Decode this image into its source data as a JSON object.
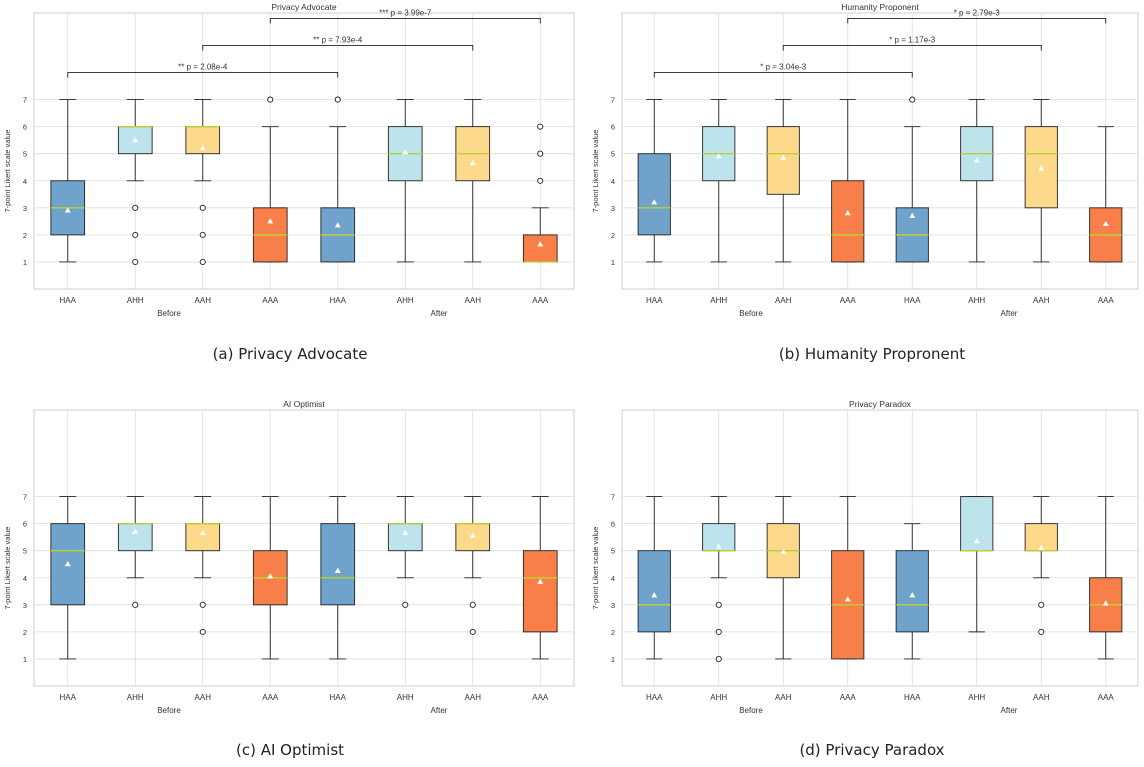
{
  "common": {
    "ylabel": "7-point Likert scale value",
    "ylim": [
      0,
      10.2
    ],
    "yticks": [
      "1",
      "2",
      "3",
      "4",
      "5",
      "6",
      "7"
    ],
    "categories": [
      "HAA",
      "AHH",
      "AAH",
      "AAA",
      "HAA",
      "AHH",
      "AAH",
      "AAA"
    ],
    "group_labels": [
      "Before",
      "After"
    ],
    "colors": {
      "HAA": "#6fa3cc",
      "AHH": "#bde3ec",
      "AAH": "#fdd98c",
      "AAA": "#f97f4a",
      "median": "#bcd030",
      "mean_marker": "#ffffff",
      "grid": "#dcdcdc"
    }
  },
  "panels": [
    {
      "caption": "(a) Privacy Advocate",
      "chart_data": {
        "type": "box",
        "title": "Privacy Advocate",
        "ylabel": "7-point Likert scale value",
        "boxes": [
          {
            "category": "HAA",
            "group": "Before",
            "whisker_low": 1,
            "q1": 2,
            "median": 3,
            "q3": 4,
            "whisker_high": 7,
            "mean": 2.9,
            "outliers": []
          },
          {
            "category": "AHH",
            "group": "Before",
            "whisker_low": 4,
            "q1": 5,
            "median": 6,
            "q3": 6,
            "whisker_high": 7,
            "mean": 5.5,
            "outliers": [
              3,
              2,
              1
            ]
          },
          {
            "category": "AAH",
            "group": "Before",
            "whisker_low": 4,
            "q1": 5,
            "median": 6,
            "q3": 6,
            "whisker_high": 7,
            "mean": 5.2,
            "outliers": [
              3,
              2,
              1
            ]
          },
          {
            "category": "AAA",
            "group": "Before",
            "whisker_low": 1,
            "q1": 1,
            "median": 2,
            "q3": 3,
            "whisker_high": 6,
            "mean": 2.5,
            "outliers": [
              7
            ]
          },
          {
            "category": "HAA",
            "group": "After",
            "whisker_low": 1,
            "q1": 1,
            "median": 2,
            "q3": 3,
            "whisker_high": 6,
            "mean": 2.35,
            "outliers": [
              7
            ]
          },
          {
            "category": "AHH",
            "group": "After",
            "whisker_low": 1,
            "q1": 4,
            "median": 5,
            "q3": 6,
            "whisker_high": 7,
            "mean": 5.05,
            "outliers": []
          },
          {
            "category": "AAH",
            "group": "After",
            "whisker_low": 1,
            "q1": 4,
            "median": 5,
            "q3": 6,
            "whisker_high": 7,
            "mean": 4.65,
            "outliers": []
          },
          {
            "category": "AAA",
            "group": "After",
            "whisker_low": 1,
            "q1": 1,
            "median": 1,
            "q3": 2,
            "whisker_high": 3,
            "mean": 1.65,
            "outliers": [
              4,
              5,
              6
            ]
          }
        ],
        "significance": [
          {
            "from": 1,
            "to": 5,
            "label": "** p = 2.08e-4"
          },
          {
            "from": 3,
            "to": 7,
            "label": "** p = 7.93e-4"
          },
          {
            "from": 4,
            "to": 8,
            "label": "*** p = 3.99e-7"
          }
        ]
      }
    },
    {
      "caption": "(b) Humanity Propronent",
      "chart_data": {
        "type": "box",
        "title": "Humanity Proponent",
        "ylabel": "7-point Likert scale value",
        "boxes": [
          {
            "category": "HAA",
            "group": "Before",
            "whisker_low": 1,
            "q1": 2,
            "median": 3,
            "q3": 5,
            "whisker_high": 7,
            "mean": 3.2,
            "outliers": []
          },
          {
            "category": "AHH",
            "group": "Before",
            "whisker_low": 1,
            "q1": 4,
            "median": 5,
            "q3": 6,
            "whisker_high": 7,
            "mean": 4.9,
            "outliers": []
          },
          {
            "category": "AAH",
            "group": "Before",
            "whisker_low": 1,
            "q1": 3.5,
            "median": 5,
            "q3": 6,
            "whisker_high": 7,
            "mean": 4.85,
            "outliers": []
          },
          {
            "category": "AAA",
            "group": "Before",
            "whisker_low": 1,
            "q1": 1,
            "median": 2,
            "q3": 4,
            "whisker_high": 7,
            "mean": 2.8,
            "outliers": []
          },
          {
            "category": "HAA",
            "group": "After",
            "whisker_low": 1,
            "q1": 1,
            "median": 2,
            "q3": 3,
            "whisker_high": 6,
            "mean": 2.7,
            "outliers": [
              7
            ]
          },
          {
            "category": "AHH",
            "group": "After",
            "whisker_low": 1,
            "q1": 4,
            "median": 5,
            "q3": 6,
            "whisker_high": 7,
            "mean": 4.75,
            "outliers": []
          },
          {
            "category": "AAH",
            "group": "After",
            "whisker_low": 1,
            "q1": 3,
            "median": 5,
            "q3": 6,
            "whisker_high": 7,
            "mean": 4.45,
            "outliers": []
          },
          {
            "category": "AAA",
            "group": "After",
            "whisker_low": 1,
            "q1": 1,
            "median": 2,
            "q3": 3,
            "whisker_high": 6,
            "mean": 2.4,
            "outliers": []
          }
        ],
        "significance": [
          {
            "from": 1,
            "to": 5,
            "label": "* p = 3.04e-3"
          },
          {
            "from": 3,
            "to": 7,
            "label": "* p = 1.17e-3"
          },
          {
            "from": 4,
            "to": 8,
            "label": "* p = 2.79e-3"
          }
        ]
      }
    },
    {
      "caption": "(c) AI Optimist",
      "chart_data": {
        "type": "box",
        "title": "AI Optimist",
        "ylabel": "7-point Likert scale value",
        "boxes": [
          {
            "category": "HAA",
            "group": "Before",
            "whisker_low": 1,
            "q1": 3,
            "median": 5,
            "q3": 6,
            "whisker_high": 7,
            "mean": 4.5,
            "outliers": []
          },
          {
            "category": "AHH",
            "group": "Before",
            "whisker_low": 4,
            "q1": 5,
            "median": 6,
            "q3": 6,
            "whisker_high": 7,
            "mean": 5.7,
            "outliers": [
              3
            ]
          },
          {
            "category": "AAH",
            "group": "Before",
            "whisker_low": 4,
            "q1": 5,
            "median": 6,
            "q3": 6,
            "whisker_high": 7,
            "mean": 5.65,
            "outliers": [
              3,
              2
            ]
          },
          {
            "category": "AAA",
            "group": "Before",
            "whisker_low": 1,
            "q1": 3,
            "median": 4,
            "q3": 5,
            "whisker_high": 7,
            "mean": 4.05,
            "outliers": []
          },
          {
            "category": "HAA",
            "group": "After",
            "whisker_low": 1,
            "q1": 3,
            "median": 4,
            "q3": 6,
            "whisker_high": 7,
            "mean": 4.25,
            "outliers": []
          },
          {
            "category": "AHH",
            "group": "After",
            "whisker_low": 4,
            "q1": 5,
            "median": 6,
            "q3": 6,
            "whisker_high": 7,
            "mean": 5.65,
            "outliers": [
              3
            ]
          },
          {
            "category": "AAH",
            "group": "After",
            "whisker_low": 4,
            "q1": 5,
            "median": 6,
            "q3": 6,
            "whisker_high": 7,
            "mean": 5.55,
            "outliers": [
              3,
              2
            ]
          },
          {
            "category": "AAA",
            "group": "After",
            "whisker_low": 1,
            "q1": 2,
            "median": 4,
            "q3": 5,
            "whisker_high": 7,
            "mean": 3.85,
            "outliers": []
          }
        ],
        "significance": []
      }
    },
    {
      "caption": "(d) Privacy Paradox",
      "chart_data": {
        "type": "box",
        "title": "Privacy Paradox",
        "ylabel": "7-point Likert scale value",
        "boxes": [
          {
            "category": "HAA",
            "group": "Before",
            "whisker_low": 1,
            "q1": 2,
            "median": 3,
            "q3": 5,
            "whisker_high": 7,
            "mean": 3.35,
            "outliers": []
          },
          {
            "category": "AHH",
            "group": "Before",
            "whisker_low": 4,
            "q1": 5,
            "median": 5,
            "q3": 6,
            "whisker_high": 7,
            "mean": 5.15,
            "outliers": [
              3,
              2,
              1
            ]
          },
          {
            "category": "AAH",
            "group": "Before",
            "whisker_low": 1,
            "q1": 4,
            "median": 5,
            "q3": 6,
            "whisker_high": 7,
            "mean": 4.95,
            "outliers": []
          },
          {
            "category": "AAA",
            "group": "Before",
            "whisker_low": 1,
            "q1": 1,
            "median": 3,
            "q3": 5,
            "whisker_high": 7,
            "mean": 3.2,
            "outliers": []
          },
          {
            "category": "HAA",
            "group": "After",
            "whisker_low": 1,
            "q1": 2,
            "median": 3,
            "q3": 5,
            "whisker_high": 6,
            "mean": 3.35,
            "outliers": []
          },
          {
            "category": "AHH",
            "group": "After",
            "whisker_low": 2,
            "q1": 5,
            "median": 5,
            "q3": 7,
            "whisker_high": 7,
            "mean": 5.35,
            "outliers": []
          },
          {
            "category": "AAH",
            "group": "After",
            "whisker_low": 4,
            "q1": 5,
            "median": 5,
            "q3": 6,
            "whisker_high": 7,
            "mean": 5.1,
            "outliers": [
              3,
              2
            ]
          },
          {
            "category": "AAA",
            "group": "After",
            "whisker_low": 1,
            "q1": 2,
            "median": 3,
            "q3": 4,
            "whisker_high": 7,
            "mean": 3.05,
            "outliers": []
          }
        ],
        "significance": []
      }
    }
  ]
}
